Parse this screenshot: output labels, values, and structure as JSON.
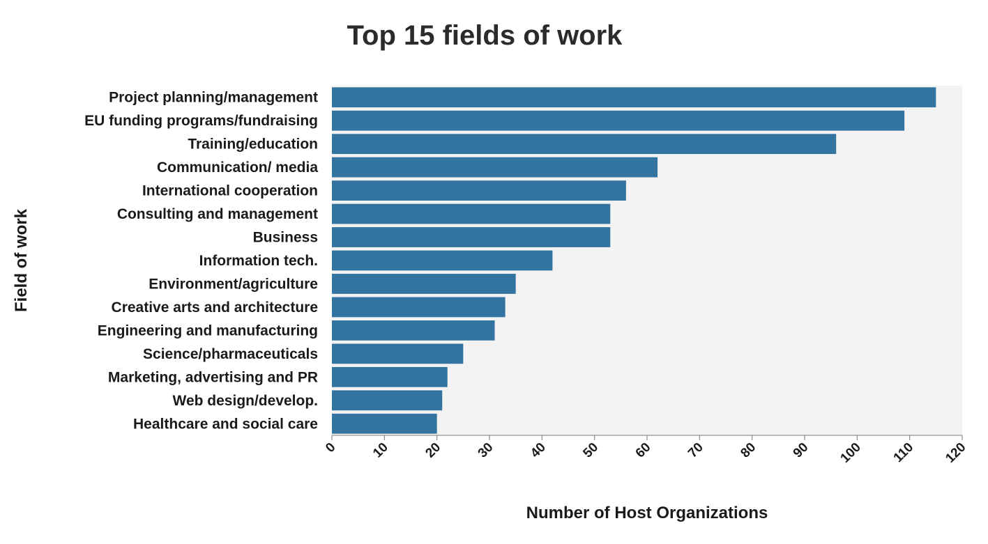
{
  "chart_data": {
    "type": "bar",
    "orientation": "horizontal",
    "title": "Top 15 fields of work",
    "xlabel": "Number of Host Organizations",
    "ylabel": "Field of work",
    "xlim": [
      0,
      120
    ],
    "xticks": [
      0,
      10,
      20,
      30,
      40,
      50,
      60,
      70,
      80,
      90,
      100,
      110,
      120
    ],
    "grid": false,
    "bar_color": "#32739f",
    "background_color": "#f3f3f3",
    "categories": [
      "Project planning/management",
      "EU funding programs/fundraising",
      "Training/education",
      "Communication/ media",
      "International cooperation",
      "Consulting and management",
      "Business",
      "Information tech.",
      "Environment/agriculture",
      "Creative arts and architecture",
      "Engineering and manufacturing",
      "Science/pharmaceuticals",
      "Marketing, advertising and PR",
      "Web design/develop.",
      "Healthcare and social care"
    ],
    "values": [
      115,
      109,
      96,
      62,
      56,
      53,
      53,
      42,
      35,
      33,
      31,
      25,
      22,
      21,
      20
    ]
  }
}
